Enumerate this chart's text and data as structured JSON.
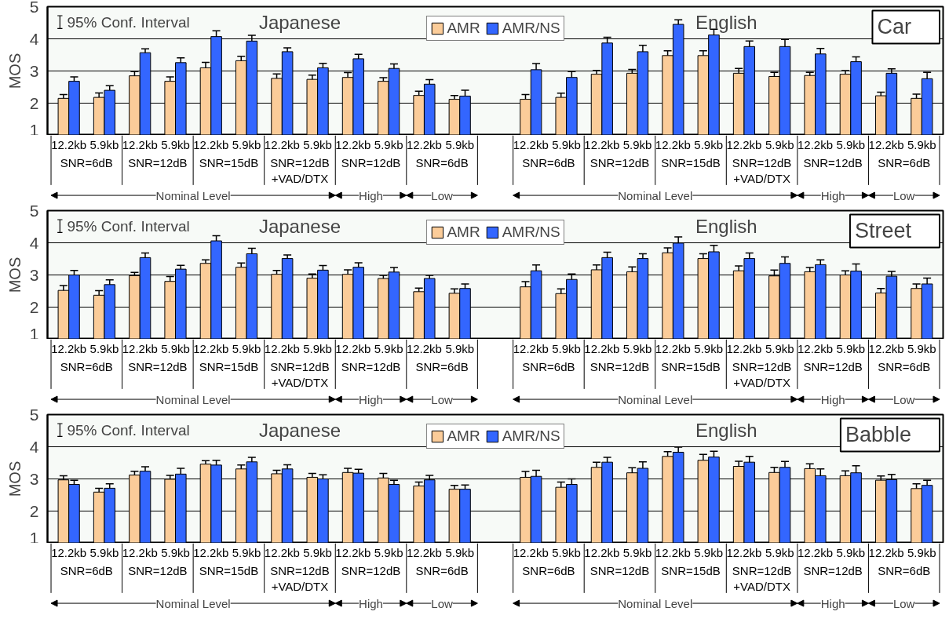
{
  "chart_data": [
    {
      "type": "bar",
      "title": "Car",
      "ylabel": "MOS",
      "ylim": [
        1,
        5
      ],
      "yticks": [
        1,
        2,
        3,
        4,
        5
      ],
      "grid": "y",
      "legend": "top",
      "categories": [
        "12.2kb",
        "5.9kb",
        "12.2kb",
        "5.9kb",
        "12.2kb",
        "5.9kb",
        "12.2kb",
        "5.9kb",
        "12.2kb",
        "5.9kb",
        "12.2kb",
        "5.9kb",
        null,
        "12.2kb",
        "5.9kb",
        "12.2kb",
        "5.9kb",
        "12.2kb",
        "5.9kb",
        "12.2kb",
        "5.9kb",
        "12.2kb",
        "5.9kb",
        "12.2kb",
        "5.9kb"
      ],
      "series": [
        {
          "name": "AMR",
          "color": "#fbcc99",
          "values": [
            2.15,
            2.18,
            2.85,
            2.68,
            3.1,
            3.32,
            2.77,
            2.74,
            2.8,
            2.68,
            2.24,
            2.12,
            null,
            2.12,
            2.18,
            2.9,
            2.93,
            3.48,
            3.48,
            2.93,
            2.83,
            2.86,
            2.9,
            2.23,
            2.15
          ],
          "errors": [
            0.12,
            0.14,
            0.13,
            0.14,
            0.17,
            0.14,
            0.14,
            0.13,
            0.15,
            0.11,
            0.13,
            0.12,
            null,
            0.15,
            0.13,
            0.12,
            0.12,
            0.15,
            0.15,
            0.15,
            0.13,
            0.1,
            0.11,
            0.11,
            0.13
          ]
        },
        {
          "name": "AMR/NS",
          "color": "#3366ff",
          "values": [
            2.68,
            2.4,
            3.57,
            3.26,
            4.07,
            3.93,
            3.6,
            3.1,
            3.38,
            3.08,
            2.59,
            2.22,
            null,
            3.04,
            2.8,
            3.87,
            3.6,
            4.45,
            4.12,
            3.76,
            3.76,
            3.53,
            3.29,
            2.93,
            2.76
          ],
          "errors": [
            0.14,
            0.14,
            0.12,
            0.15,
            0.18,
            0.18,
            0.12,
            0.14,
            0.14,
            0.14,
            0.14,
            0.18,
            null,
            0.19,
            0.18,
            0.18,
            0.2,
            0.14,
            0.18,
            0.17,
            0.22,
            0.17,
            0.15,
            0.14,
            0.2
          ]
        }
      ],
      "annotations": [
        "95% Conf. Interval",
        "Japanese",
        "English",
        "SNR=6dB",
        "SNR=12dB",
        "SNR=15dB",
        "SNR=12dB\n+VAD/DTX",
        "SNR=12dB",
        "SNR=6dB",
        "Nominal Level",
        "High",
        "Low",
        "SNR=6dB",
        "SNR=12dB",
        "SNR=15dB",
        "SNR=12dB\n+VAD/DTX",
        "SNR=12dB",
        "SNR=6dB",
        "Nominal Level",
        "High",
        "Low"
      ]
    },
    {
      "type": "bar",
      "title": "Street",
      "ylabel": "MOS",
      "ylim": [
        1,
        5
      ],
      "yticks": [
        1,
        2,
        3,
        4,
        5
      ],
      "grid": "y",
      "legend": "top",
      "categories": [
        "12.2kb",
        "5.9kb",
        "12.2kb",
        "5.9kb",
        "12.2kb",
        "5.9kb",
        "12.2kb",
        "5.9kb",
        "12.2kb",
        "5.9kb",
        "12.2kb",
        "5.9kb",
        null,
        "12.2kb",
        "5.9kb",
        "12.2kb",
        "5.9kb",
        "12.2kb",
        "5.9kb",
        "12.2kb",
        "5.9kb",
        "12.2kb",
        "5.9kb",
        "12.2kb",
        "5.9kb"
      ],
      "series": [
        {
          "name": "AMR",
          "color": "#fbcc99",
          "values": [
            2.52,
            2.37,
            2.98,
            2.8,
            3.36,
            3.24,
            3.02,
            2.9,
            3.02,
            2.89,
            2.48,
            2.43,
            null,
            2.63,
            2.42,
            3.16,
            3.1,
            3.69,
            3.51,
            3.13,
            2.97,
            3.1,
            3.0,
            2.44,
            2.58
          ],
          "errors": [
            0.15,
            0.14,
            0.1,
            0.15,
            0.11,
            0.13,
            0.12,
            0.13,
            0.14,
            0.1,
            0.11,
            0.14,
            null,
            0.16,
            0.15,
            0.15,
            0.15,
            0.15,
            0.15,
            0.15,
            0.18,
            0.13,
            0.13,
            0.14,
            0.14
          ]
        },
        {
          "name": "AMR/NS",
          "color": "#3366ff",
          "values": [
            3.0,
            2.7,
            3.54,
            3.18,
            4.06,
            3.66,
            3.51,
            3.15,
            3.24,
            3.09,
            2.89,
            2.58,
            null,
            3.13,
            2.86,
            3.54,
            3.51,
            3.99,
            3.72,
            3.51,
            3.36,
            3.32,
            3.12,
            2.96,
            2.72
          ],
          "errors": [
            0.14,
            0.15,
            0.14,
            0.12,
            0.16,
            0.17,
            0.11,
            0.14,
            0.14,
            0.14,
            0.1,
            0.14,
            null,
            0.18,
            0.17,
            0.17,
            0.15,
            0.19,
            0.2,
            0.17,
            0.2,
            0.15,
            0.22,
            0.15,
            0.18
          ]
        }
      ],
      "annotations": [
        "95% Conf. Interval",
        "Japanese",
        "English",
        "SNR=6dB",
        "SNR=12dB",
        "SNR=15dB",
        "SNR=12dB\n+VAD/DTX",
        "SNR=12dB",
        "SNR=6dB",
        "Nominal Level",
        "High",
        "Low",
        "SNR=6dB",
        "SNR=12dB",
        "SNR=15dB",
        "SNR=12dB\n+VAD/DTX",
        "SNR=12dB",
        "SNR=6dB",
        "Nominal Level",
        "High",
        "Low"
      ]
    },
    {
      "type": "bar",
      "title": "Babble",
      "ylabel": "MOS",
      "ylim": [
        1,
        5
      ],
      "yticks": [
        1,
        2,
        3,
        4,
        5
      ],
      "grid": "y",
      "legend": "top",
      "categories": [
        "12.2kb",
        "5.9kb",
        "12.2kb",
        "5.9kb",
        "12.2kb",
        "5.9kb",
        "12.2kb",
        "5.9kb",
        "12.2kb",
        "5.9kb",
        "12.2kb",
        "5.9kb",
        null,
        "12.2kb",
        "5.9kb",
        "12.2kb",
        "5.9kb",
        "12.2kb",
        "5.9kb",
        "12.2kb",
        "5.9kb",
        "12.2kb",
        "5.9kb",
        "12.2kb",
        "5.9kb"
      ],
      "series": [
        {
          "name": "AMR",
          "color": "#fbcc99",
          "values": [
            2.97,
            2.59,
            3.12,
            2.99,
            3.46,
            3.31,
            3.16,
            3.05,
            3.2,
            3.03,
            2.78,
            2.68,
            null,
            3.05,
            2.74,
            3.36,
            3.19,
            3.7,
            3.58,
            3.39,
            3.2,
            3.32,
            3.1,
            2.96,
            2.7
          ],
          "errors": [
            0.13,
            0.12,
            0.12,
            0.12,
            0.11,
            0.12,
            0.11,
            0.12,
            0.13,
            0.14,
            0.12,
            0.12,
            null,
            0.18,
            0.16,
            0.16,
            0.16,
            0.15,
            0.18,
            0.16,
            0.16,
            0.15,
            0.15,
            0.13,
            0.15
          ]
        },
        {
          "name": "AMR/NS",
          "color": "#3366ff",
          "values": [
            2.83,
            2.71,
            3.24,
            3.15,
            3.43,
            3.53,
            3.31,
            3.0,
            3.18,
            2.83,
            2.97,
            2.68,
            null,
            3.08,
            2.83,
            3.52,
            3.33,
            3.83,
            3.68,
            3.52,
            3.36,
            3.1,
            3.19,
            2.98,
            2.8
          ],
          "errors": [
            0.13,
            0.14,
            0.14,
            0.18,
            0.15,
            0.14,
            0.13,
            0.13,
            0.12,
            0.13,
            0.14,
            0.13,
            null,
            0.19,
            0.17,
            0.15,
            0.2,
            0.16,
            0.18,
            0.18,
            0.18,
            0.21,
            0.22,
            0.16,
            0.16
          ]
        }
      ],
      "annotations": [
        "95% Conf. Interval",
        "Japanese",
        "English",
        "SNR=6dB",
        "SNR=12dB",
        "SNR=15dB",
        "SNR=12dB\n+VAD/DTX",
        "SNR=12dB",
        "SNR=6dB",
        "Nominal Level",
        "High",
        "Low",
        "SNR=6dB",
        "SNR=12dB",
        "SNR=15dB",
        "SNR=12dB\n+VAD/DTX",
        "SNR=12dB",
        "SNR=6dB",
        "Nominal Level",
        "High",
        "Low"
      ]
    }
  ]
}
